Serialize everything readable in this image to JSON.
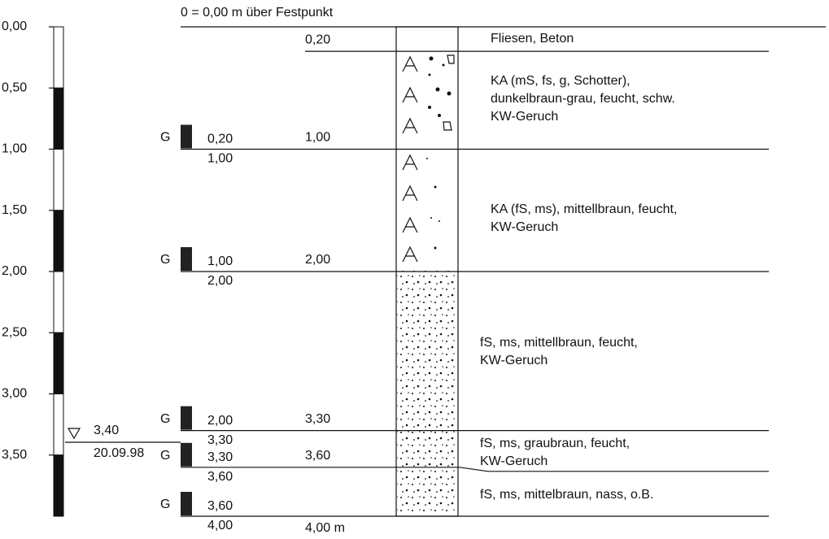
{
  "header": {
    "title": "0 = 0,00 m über Festpunkt"
  },
  "scale": {
    "labels": [
      "0,00",
      "0,50",
      "1,00",
      "1,50",
      "2,00",
      "2,50",
      "3,00",
      "3,50"
    ]
  },
  "water_level": {
    "depth": "3,40",
    "date": "20.09.98"
  },
  "layers": [
    {
      "bottom": "0,20",
      "description": [
        "Fliesen, Beton"
      ]
    },
    {
      "bottom": "1,00",
      "description": [
        "KA (mS, fs, g, Schotter),",
        "dunkelbraun-grau, feucht, schw.",
        "KW-Geruch"
      ],
      "sample": {
        "marker": "G",
        "from": "0,20",
        "to": "1,00"
      }
    },
    {
      "bottom": "2,00",
      "description": [
        "KA (fS, ms), mittellbraun, feucht,",
        "KW-Geruch"
      ],
      "sample": {
        "marker": "G",
        "from": "1,00",
        "to": "2,00"
      }
    },
    {
      "bottom": "3,30",
      "description": [
        "fS, ms, mittellbraun, feucht,",
        "KW-Geruch"
      ],
      "sample": {
        "marker": "G",
        "from": "2,00",
        "to": "3,30"
      }
    },
    {
      "bottom": "3,60",
      "description": [
        "fS, ms, graubraun, feucht,",
        "KW-Geruch"
      ],
      "sample": {
        "marker": "G",
        "from": "3,30",
        "to": "3,60"
      }
    },
    {
      "bottom": "4,00 m",
      "description": [
        "fS, ms, mittelbraun, nass, o.B."
      ],
      "sample": {
        "marker": "G",
        "from": "3,60",
        "to": "4,00"
      }
    }
  ]
}
